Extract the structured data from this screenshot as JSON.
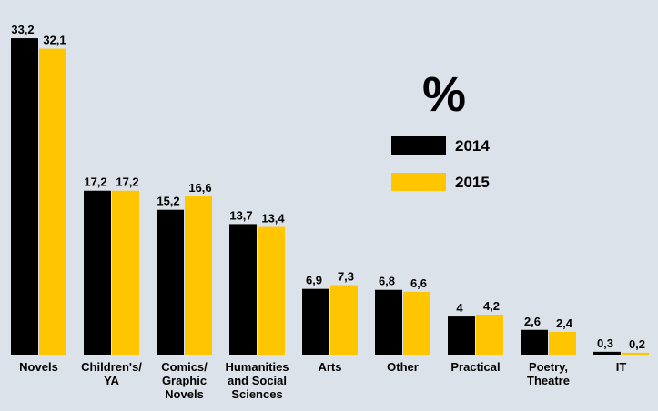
{
  "chart_data": {
    "type": "bar",
    "legend_title": "%",
    "categories": [
      "Novels",
      "Children's/\nYA",
      "Comics/\nGraphic\nNovels",
      "Humanities\nand Social\nSciences",
      "Arts",
      "Other",
      "Practical",
      "Poetry,\nTheatre",
      "IT"
    ],
    "series": [
      {
        "name": "2014",
        "color": "#000000",
        "values": [
          33.2,
          17.2,
          15.2,
          13.7,
          6.9,
          6.8,
          4,
          2.6,
          0.3
        ],
        "value_labels": [
          "33,2",
          "17,2",
          "15,2",
          "13,7",
          "6,9",
          "6,8",
          "4",
          "2,6",
          "0,3"
        ]
      },
      {
        "name": "2015",
        "color": "#ffc600",
        "values": [
          32.1,
          17.2,
          16.6,
          13.4,
          7.3,
          6.6,
          4.2,
          2.4,
          0.2
        ],
        "value_labels": [
          "32,1",
          "17,2",
          "16,6",
          "13,4",
          "7,3",
          "6,6",
          "4,2",
          "2,4",
          "0,2"
        ]
      }
    ]
  }
}
